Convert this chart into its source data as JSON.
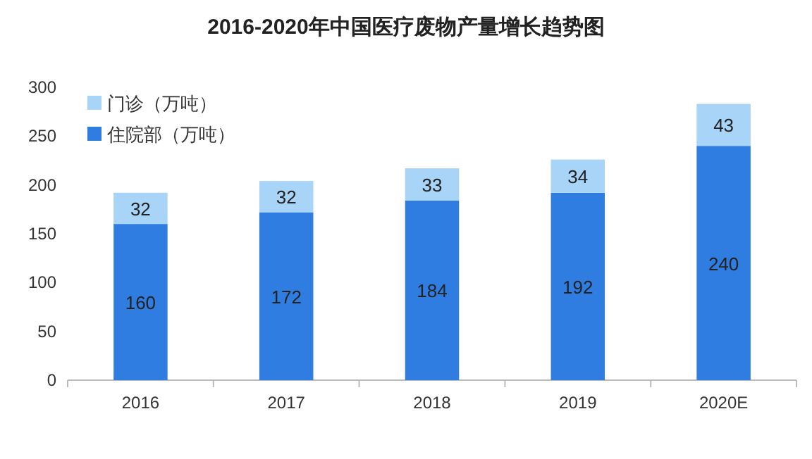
{
  "chart_data": {
    "type": "bar",
    "title": "2016-2020年中国医疗废物产量增长趋势图",
    "categories": [
      "2016",
      "2017",
      "2018",
      "2019",
      "2020E"
    ],
    "stacked": true,
    "data_labels": true,
    "legend": "top left",
    "grid": false,
    "ylim": [
      0,
      300
    ],
    "yticks": [
      0,
      50,
      100,
      150,
      200,
      250,
      300
    ],
    "series": [
      {
        "name": "住院部（万吨）",
        "color": "#2f7de1",
        "values": [
          160,
          172,
          184,
          192,
          240
        ]
      },
      {
        "name": "门诊（万吨）",
        "color": "#a8d4f7",
        "values": [
          32,
          32,
          33,
          34,
          43
        ]
      }
    ]
  }
}
